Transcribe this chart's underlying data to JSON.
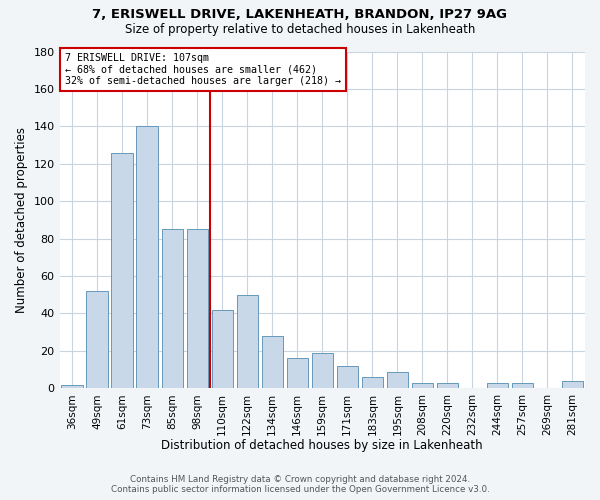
{
  "title1": "7, ERISWELL DRIVE, LAKENHEATH, BRANDON, IP27 9AG",
  "title2": "Size of property relative to detached houses in Lakenheath",
  "xlabel": "Distribution of detached houses by size in Lakenheath",
  "ylabel": "Number of detached properties",
  "categories": [
    "36sqm",
    "49sqm",
    "61sqm",
    "73sqm",
    "85sqm",
    "98sqm",
    "110sqm",
    "122sqm",
    "134sqm",
    "146sqm",
    "159sqm",
    "171sqm",
    "183sqm",
    "195sqm",
    "208sqm",
    "220sqm",
    "232sqm",
    "244sqm",
    "257sqm",
    "269sqm",
    "281sqm"
  ],
  "values": [
    2,
    52,
    126,
    140,
    85,
    85,
    42,
    50,
    28,
    16,
    19,
    12,
    6,
    9,
    3,
    3,
    0,
    3,
    3,
    0,
    4
  ],
  "bar_color": "#c8d8e8",
  "bar_edge_color": "#6699bb",
  "vline_x_index": 6,
  "vline_color": "#cc0000",
  "annotation_line1": "7 ERISWELL DRIVE: 107sqm",
  "annotation_line2": "← 68% of detached houses are smaller (462)",
  "annotation_line3": "32% of semi-detached houses are larger (218) →",
  "annotation_box_edge_color": "#cc0000",
  "ylim": [
    0,
    180
  ],
  "yticks": [
    0,
    20,
    40,
    60,
    80,
    100,
    120,
    140,
    160,
    180
  ],
  "footer1": "Contains HM Land Registry data © Crown copyright and database right 2024.",
  "footer2": "Contains public sector information licensed under the Open Government Licence v3.0.",
  "bg_color": "#f2f5f8",
  "plot_bg_color": "#ffffff",
  "grid_color": "#c8d4e0"
}
